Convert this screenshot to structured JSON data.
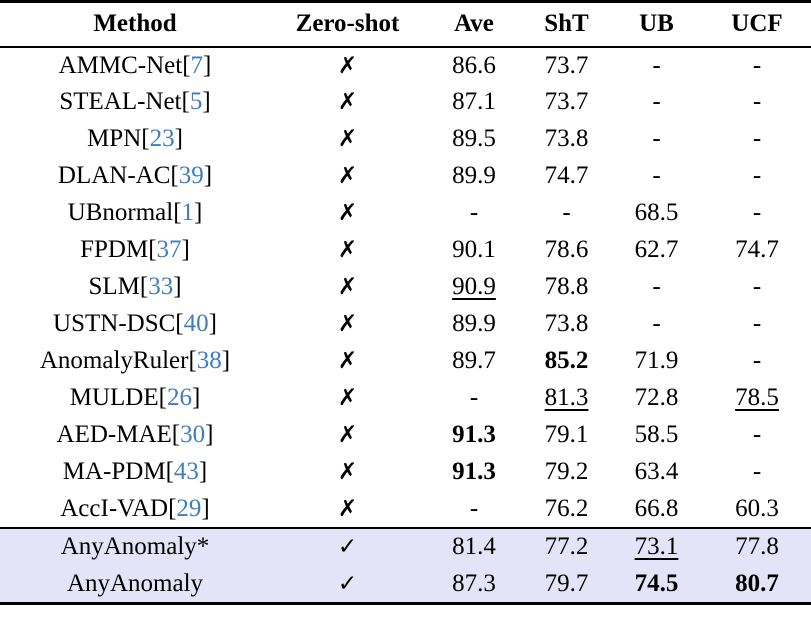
{
  "colors": {
    "citation_blue": "#3e7dbe",
    "highlight_row": "#e4e3f7",
    "rule_black": "#000000"
  },
  "glyphs": {
    "cross": "✗",
    "check": "✓",
    "cite_open": "[",
    "cite_close": "]"
  },
  "table": {
    "columns": [
      "Method",
      "Zero-shot",
      "Ave",
      "ShT",
      "UB",
      "UCF"
    ],
    "rows": [
      {
        "method": "AMMC-Net",
        "cite": "7",
        "zero_shot": false,
        "highlight": false,
        "values": [
          {
            "text": "86.6",
            "style": "normal"
          },
          {
            "text": "73.7",
            "style": "normal"
          },
          {
            "text": "-",
            "style": "normal"
          },
          {
            "text": "-",
            "style": "normal"
          }
        ]
      },
      {
        "method": "STEAL-Net",
        "cite": "5",
        "zero_shot": false,
        "highlight": false,
        "values": [
          {
            "text": "87.1",
            "style": "normal"
          },
          {
            "text": "73.7",
            "style": "normal"
          },
          {
            "text": "-",
            "style": "normal"
          },
          {
            "text": "-",
            "style": "normal"
          }
        ]
      },
      {
        "method": "MPN",
        "cite": "23",
        "zero_shot": false,
        "highlight": false,
        "values": [
          {
            "text": "89.5",
            "style": "normal"
          },
          {
            "text": "73.8",
            "style": "normal"
          },
          {
            "text": "-",
            "style": "normal"
          },
          {
            "text": "-",
            "style": "normal"
          }
        ]
      },
      {
        "method": "DLAN-AC",
        "cite": "39",
        "zero_shot": false,
        "highlight": false,
        "values": [
          {
            "text": "89.9",
            "style": "normal"
          },
          {
            "text": "74.7",
            "style": "normal"
          },
          {
            "text": "-",
            "style": "normal"
          },
          {
            "text": "-",
            "style": "normal"
          }
        ]
      },
      {
        "method": "UBnormal",
        "cite": "1",
        "zero_shot": false,
        "highlight": false,
        "values": [
          {
            "text": "-",
            "style": "normal"
          },
          {
            "text": "-",
            "style": "normal"
          },
          {
            "text": "68.5",
            "style": "normal"
          },
          {
            "text": "-",
            "style": "normal"
          }
        ]
      },
      {
        "method": "FPDM",
        "cite": "37",
        "zero_shot": false,
        "highlight": false,
        "values": [
          {
            "text": "90.1",
            "style": "normal"
          },
          {
            "text": "78.6",
            "style": "normal"
          },
          {
            "text": "62.7",
            "style": "normal"
          },
          {
            "text": "74.7",
            "style": "normal"
          }
        ]
      },
      {
        "method": "SLM",
        "cite": "33",
        "zero_shot": false,
        "highlight": false,
        "values": [
          {
            "text": "90.9",
            "style": "underline"
          },
          {
            "text": "78.8",
            "style": "normal"
          },
          {
            "text": "-",
            "style": "normal"
          },
          {
            "text": "-",
            "style": "normal"
          }
        ]
      },
      {
        "method": "USTN-DSC",
        "cite": "40",
        "zero_shot": false,
        "highlight": false,
        "values": [
          {
            "text": "89.9",
            "style": "normal"
          },
          {
            "text": "73.8",
            "style": "normal"
          },
          {
            "text": "-",
            "style": "normal"
          },
          {
            "text": "-",
            "style": "normal"
          }
        ]
      },
      {
        "method": "AnomalyRuler",
        "cite": "38",
        "zero_shot": false,
        "highlight": false,
        "values": [
          {
            "text": "89.7",
            "style": "normal"
          },
          {
            "text": "85.2",
            "style": "bold"
          },
          {
            "text": "71.9",
            "style": "normal"
          },
          {
            "text": "-",
            "style": "normal"
          }
        ]
      },
      {
        "method": "MULDE",
        "cite": "26",
        "zero_shot": false,
        "highlight": false,
        "values": [
          {
            "text": "-",
            "style": "normal"
          },
          {
            "text": "81.3",
            "style": "underline"
          },
          {
            "text": "72.8",
            "style": "normal"
          },
          {
            "text": "78.5",
            "style": "underline"
          }
        ]
      },
      {
        "method": "AED-MAE",
        "cite": "30",
        "zero_shot": false,
        "highlight": false,
        "values": [
          {
            "text": "91.3",
            "style": "bold"
          },
          {
            "text": "79.1",
            "style": "normal"
          },
          {
            "text": "58.5",
            "style": "normal"
          },
          {
            "text": "-",
            "style": "normal"
          }
        ]
      },
      {
        "method": "MA-PDM",
        "cite": "43",
        "zero_shot": false,
        "highlight": false,
        "values": [
          {
            "text": "91.3",
            "style": "bold"
          },
          {
            "text": "79.2",
            "style": "normal"
          },
          {
            "text": "63.4",
            "style": "normal"
          },
          {
            "text": "-",
            "style": "normal"
          }
        ]
      },
      {
        "method": "AccI-VAD",
        "cite": "29",
        "zero_shot": false,
        "highlight": false,
        "values": [
          {
            "text": "-",
            "style": "normal"
          },
          {
            "text": "76.2",
            "style": "normal"
          },
          {
            "text": "66.8",
            "style": "normal"
          },
          {
            "text": "60.3",
            "style": "normal"
          }
        ]
      },
      {
        "method": "AnyAnomaly*",
        "cite": null,
        "zero_shot": true,
        "highlight": true,
        "values": [
          {
            "text": "81.4",
            "style": "normal"
          },
          {
            "text": "77.2",
            "style": "normal"
          },
          {
            "text": "73.1",
            "style": "underline"
          },
          {
            "text": "77.8",
            "style": "normal"
          }
        ]
      },
      {
        "method": "AnyAnomaly",
        "cite": null,
        "zero_shot": true,
        "highlight": true,
        "values": [
          {
            "text": "87.3",
            "style": "normal"
          },
          {
            "text": "79.7",
            "style": "normal"
          },
          {
            "text": "74.5",
            "style": "bold"
          },
          {
            "text": "80.7",
            "style": "bold"
          }
        ]
      }
    ]
  }
}
